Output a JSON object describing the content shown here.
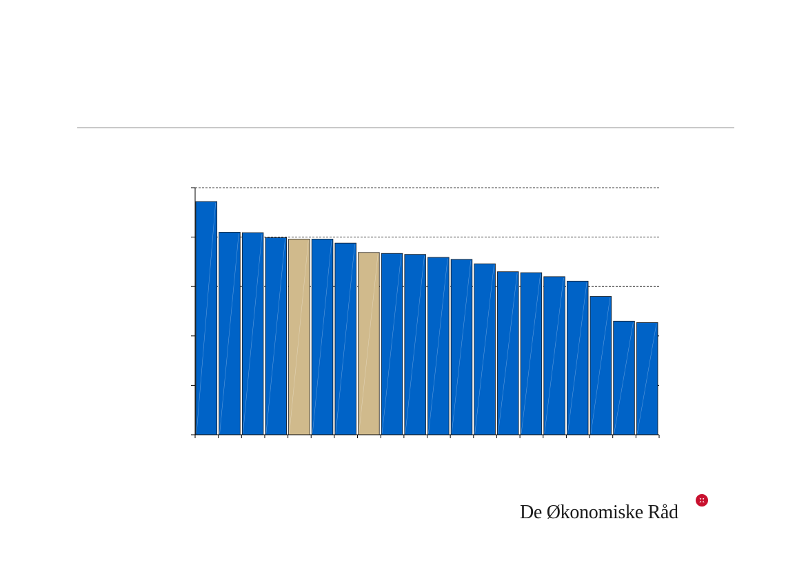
{
  "chart_data": {
    "type": "bar",
    "title": "",
    "xlabel": "",
    "ylabel": "",
    "ylim": [
      0,
      5
    ],
    "gridlines": [
      3,
      4,
      5
    ],
    "grid_style": "dashed",
    "tick_labels_visible": false,
    "categories": [
      "",
      "",
      "",
      "",
      "",
      "",
      "",
      "",
      "",
      "",
      "",
      "",
      "",
      "",
      "",
      "",
      "",
      "",
      "",
      ""
    ],
    "values": [
      4.72,
      4.1,
      4.09,
      3.99,
      3.96,
      3.96,
      3.88,
      3.69,
      3.67,
      3.65,
      3.59,
      3.55,
      3.46,
      3.3,
      3.28,
      3.2,
      3.11,
      2.8,
      2.3,
      2.27
    ],
    "highlighted_indices": [
      4,
      7
    ]
  },
  "colors": {
    "bar": "#0063c7",
    "bar_highlight": "#d0ba8c",
    "bar_border": "#1a1a1a",
    "axis": "#000000",
    "grid": "#000000",
    "rule": "#c8c8c8"
  },
  "logo": {
    "text": "De Økonomiske Råd",
    "mark_color": "#c8102e",
    "mark_icon": "star-emblem-icon"
  }
}
